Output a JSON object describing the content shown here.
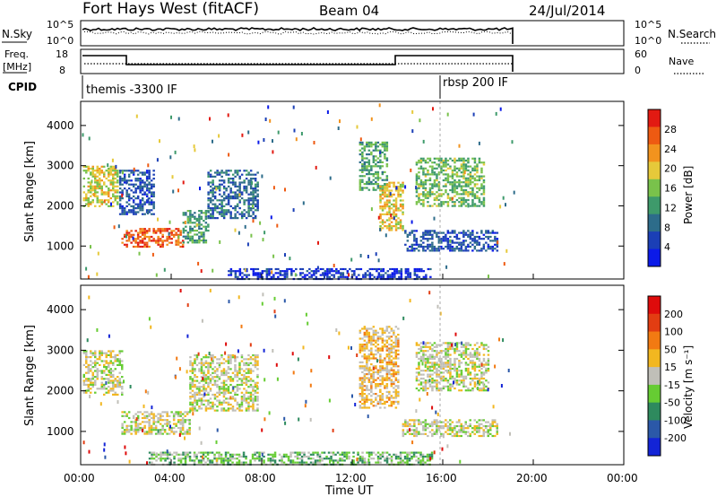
{
  "header": {
    "radar": "Fort Hays West (fitACF)",
    "beam": "Beam 04",
    "date": "24/Jul/2014"
  },
  "panels": {
    "noise": {
      "left_label": "N.Sky",
      "left_ticks": [
        "10^5",
        "10^0"
      ],
      "right_ticks": [
        "10^5",
        "10^0"
      ],
      "right_label": "N.Search"
    },
    "freq": {
      "left_label_1": "Freq.",
      "left_label_2": "[MHz]",
      "left_ticks": [
        "18",
        "8"
      ],
      "right_ticks": [
        "60",
        "0"
      ],
      "right_label": "Nave"
    },
    "cpid": {
      "label": "CPID",
      "program_1": "themis -3300 IF",
      "program_2": "rbsp 200 IF"
    }
  },
  "power_panel": {
    "ylabel": "Slant Range [km]",
    "colorbar_label": "Power [dB]",
    "colorbar_ticks": [
      "28",
      "24",
      "20",
      "16",
      "12",
      "8",
      "4"
    ]
  },
  "velocity_panel": {
    "ylabel": "Slant Range [km]",
    "colorbar_label": "Velocity [m s⁻¹]",
    "colorbar_ticks": [
      "200",
      "100",
      "50",
      "15",
      "-15",
      "-50",
      "-100",
      "-200"
    ]
  },
  "y_ticks": [
    "4000",
    "3000",
    "2000",
    "1000"
  ],
  "x_ticks": [
    "00:00",
    "04:00",
    "08:00",
    "12:00",
    "16:00",
    "20:00",
    "00:00"
  ],
  "xlabel": "Time UT",
  "colors": {
    "power_scale": [
      "#0b1ae8",
      "#1b3fb6",
      "#2d6c8a",
      "#3e9a6b",
      "#79c24b",
      "#e6c93a",
      "#f2931e",
      "#ee5a12",
      "#e21a12"
    ],
    "velocity_scale": [
      "#1324d6",
      "#2b58a8",
      "#2e8a5e",
      "#66cc33",
      "#c0bfb8",
      "#f2b720",
      "#f27a12",
      "#e23d12",
      "#de0b0b"
    ],
    "ground_scatter": "#c0bfb8"
  },
  "chart_data": [
    {
      "type": "heatmap",
      "title": "Power [dB]",
      "xlabel": "Time UT",
      "ylabel": "Slant Range [km]",
      "xlim": [
        0,
        24
      ],
      "ylim": [
        180,
        4600
      ],
      "scale": [
        4,
        28
      ],
      "regions": [
        {
          "t0": 0.1,
          "t1": 1.6,
          "r0": 2000,
          "r1": 3000,
          "v": 18
        },
        {
          "t0": 1.7,
          "t1": 3.2,
          "r0": 1800,
          "r1": 2900,
          "v": 9
        },
        {
          "t0": 1.8,
          "t1": 4.5,
          "r0": 1000,
          "r1": 1450,
          "v": 24
        },
        {
          "t0": 4.5,
          "t1": 5.6,
          "r0": 1100,
          "r1": 1900,
          "v": 13
        },
        {
          "t0": 5.6,
          "t1": 7.8,
          "r0": 1700,
          "r1": 2900,
          "v": 10
        },
        {
          "t0": 12.3,
          "t1": 13.5,
          "r0": 2400,
          "r1": 3600,
          "v": 14
        },
        {
          "t0": 13.2,
          "t1": 14.2,
          "r0": 1400,
          "r1": 2600,
          "v": 19
        },
        {
          "t0": 14.3,
          "t1": 18.4,
          "r0": 900,
          "r1": 1400,
          "v": 9
        },
        {
          "t0": 14.8,
          "t1": 17.8,
          "r0": 2000,
          "r1": 3200,
          "v": 15
        },
        {
          "t0": 6.5,
          "t1": 15.5,
          "r0": 200,
          "r1": 450,
          "v": 7
        }
      ]
    },
    {
      "type": "heatmap",
      "title": "Velocity [m s⁻¹]",
      "xlabel": "Time UT",
      "ylabel": "Slant Range [km]",
      "xlim": [
        0,
        24
      ],
      "ylim": [
        180,
        4600
      ],
      "scale": [
        -200,
        200
      ],
      "regions": [
        {
          "t0": 0.1,
          "t1": 1.8,
          "r0": 1900,
          "r1": 3000,
          "v": 0
        },
        {
          "t0": 1.8,
          "t1": 4.8,
          "r0": 950,
          "r1": 1500,
          "v": 0
        },
        {
          "t0": 4.8,
          "t1": 7.8,
          "r0": 1500,
          "r1": 2900,
          "v": 0
        },
        {
          "t0": 12.3,
          "t1": 14.0,
          "r0": 1600,
          "r1": 3600,
          "v": 35
        },
        {
          "t0": 14.2,
          "t1": 18.4,
          "r0": 900,
          "r1": 1300,
          "v": 0
        },
        {
          "t0": 14.8,
          "t1": 18.0,
          "r0": 2000,
          "r1": 3200,
          "v": 0
        },
        {
          "t0": 3.0,
          "t1": 15.5,
          "r0": 200,
          "r1": 500,
          "v": -45
        }
      ]
    }
  ]
}
